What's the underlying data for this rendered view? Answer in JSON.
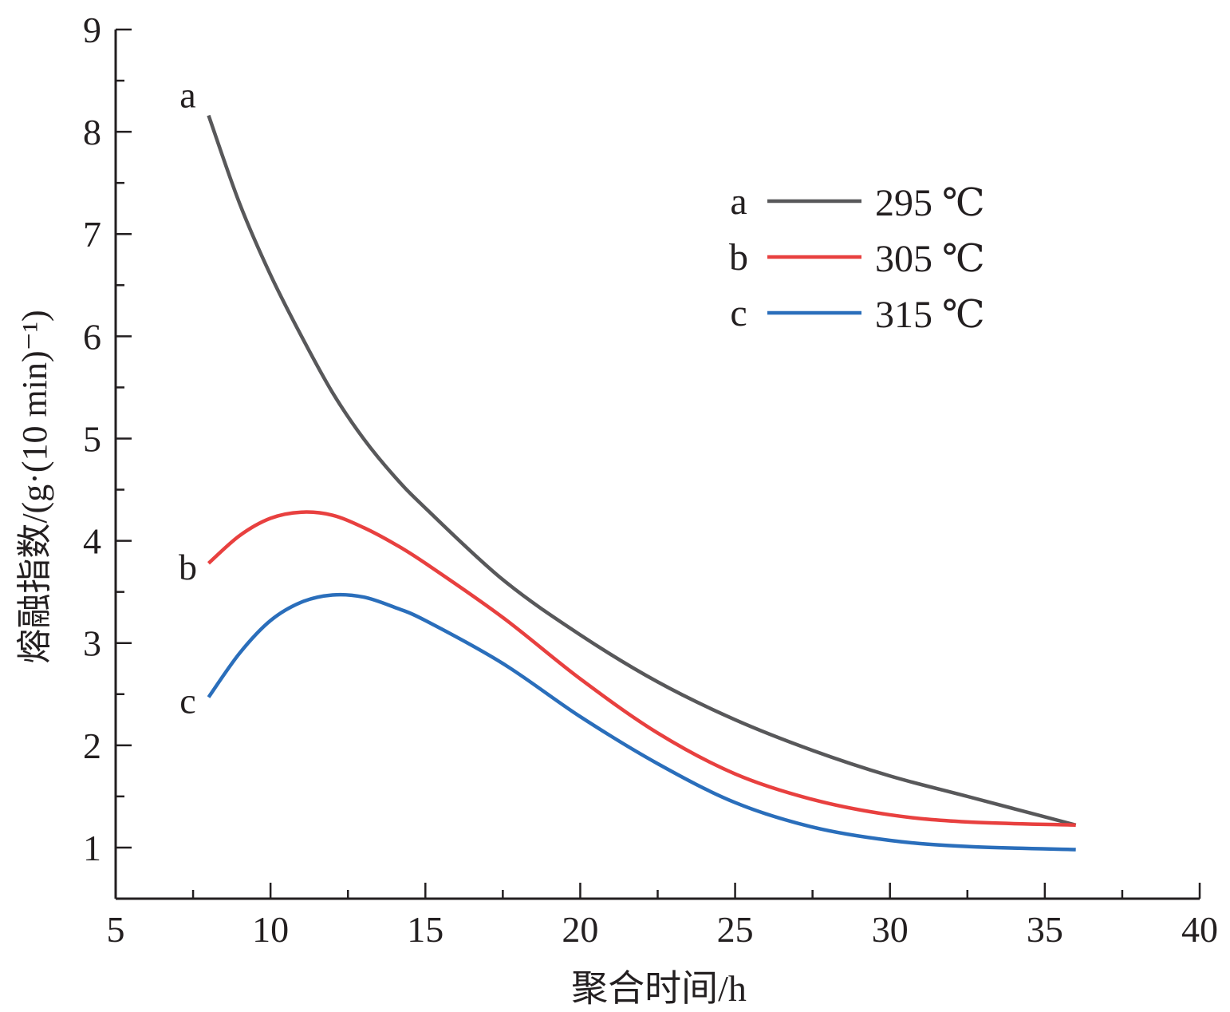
{
  "chart_data": {
    "type": "line",
    "title": "",
    "xlabel": "聚合时间/h",
    "ylabel": "熔融指数/(g·(10 min)⁻¹)",
    "xlim": [
      5,
      40
    ],
    "ylim": [
      0.5,
      9
    ],
    "xticks": [
      5,
      10,
      15,
      20,
      25,
      30,
      35,
      40
    ],
    "yticks": [
      1,
      2,
      3,
      4,
      5,
      6,
      7,
      8,
      9
    ],
    "xtick_labels": [
      "5",
      "10",
      "15",
      "20",
      "25",
      "30",
      "35",
      "40"
    ],
    "ytick_labels": [
      "1",
      "2",
      "3",
      "4",
      "5",
      "6",
      "7",
      "8",
      "9"
    ],
    "grid": false,
    "legend_position": "top-right",
    "series": [
      {
        "key": "a",
        "name": "295 ℃",
        "color": "#58585a",
        "x": [
          8,
          9,
          10,
          11,
          12,
          13,
          14,
          15,
          17.5,
          20,
          22.5,
          25,
          27.5,
          30,
          32.5,
          36
        ],
        "y": [
          8.16,
          7.3,
          6.6,
          6.0,
          5.45,
          5.0,
          4.63,
          4.32,
          3.62,
          3.08,
          2.62,
          2.25,
          1.95,
          1.7,
          1.5,
          1.22
        ]
      },
      {
        "key": "b",
        "name": "305 ℃",
        "color": "#e8403f",
        "x": [
          8,
          9,
          10,
          11,
          12,
          13,
          14,
          15,
          17.5,
          20,
          22.5,
          25,
          27.5,
          30,
          32.5,
          36
        ],
        "y": [
          3.78,
          4.05,
          4.22,
          4.28,
          4.25,
          4.13,
          3.97,
          3.78,
          3.25,
          2.65,
          2.12,
          1.72,
          1.47,
          1.32,
          1.25,
          1.22
        ]
      },
      {
        "key": "c",
        "name": "315 ℃",
        "color": "#2a6ebb",
        "x": [
          8,
          9,
          10,
          11,
          12,
          13,
          14,
          15,
          17.5,
          20,
          22.5,
          25,
          27.5,
          30,
          32.5,
          36
        ],
        "y": [
          2.47,
          2.9,
          3.22,
          3.4,
          3.47,
          3.45,
          3.35,
          3.22,
          2.8,
          2.28,
          1.82,
          1.44,
          1.2,
          1.07,
          1.01,
          0.98
        ]
      }
    ]
  }
}
